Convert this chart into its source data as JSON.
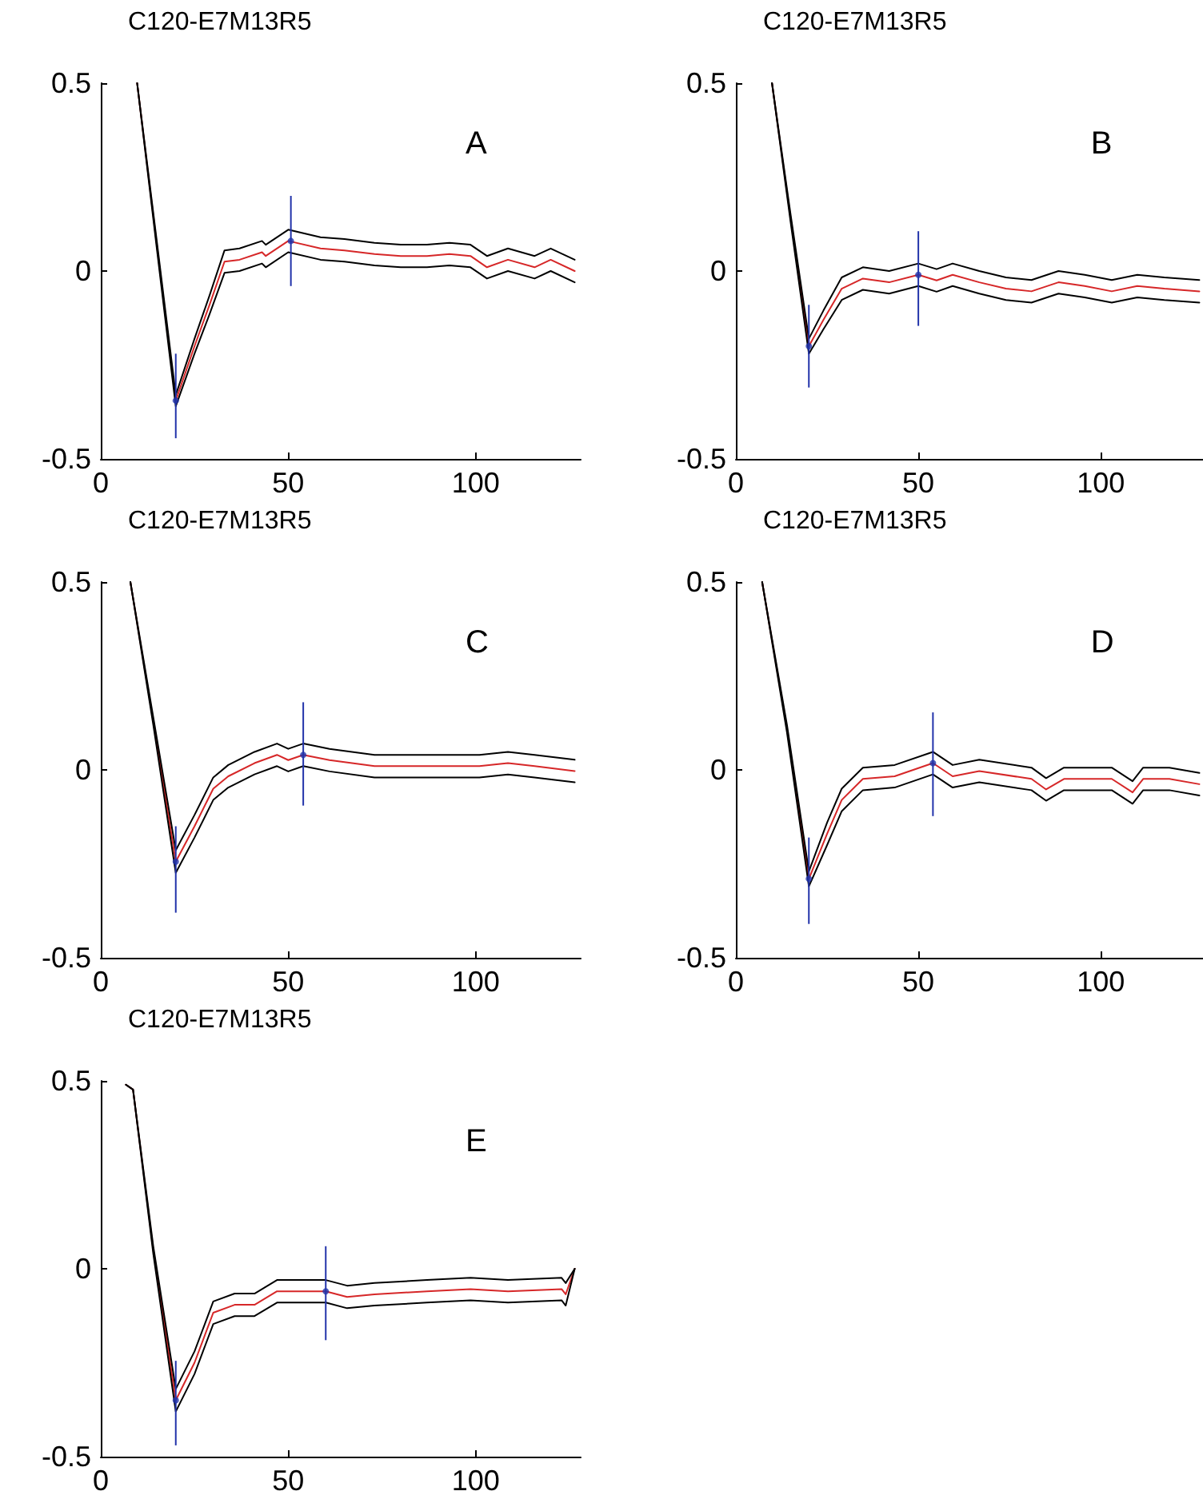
{
  "chart_data": [
    {
      "type": "line",
      "title": "C120-E7M13R5",
      "annotations": [
        "A"
      ],
      "xlim": [
        0,
        128
      ],
      "ylim": [
        -0.5,
        0.5
      ],
      "xticks": [
        0,
        50,
        100
      ],
      "yticks": [
        -0.5,
        0,
        0.5
      ],
      "series": [
        {
          "color": "#d62728",
          "marker": "none",
          "x": [
            9.7,
            15,
            20,
            25,
            29,
            33,
            37,
            43,
            44,
            50,
            58.6,
            65,
            73,
            80,
            87,
            93,
            98.6,
            103,
            108.6,
            115.7,
            120,
            126.4
          ],
          "values": [
            0.5,
            0.065,
            -0.345,
            -0.2,
            -0.09,
            0.025,
            0.03,
            0.05,
            0.04,
            0.08,
            0.06,
            0.055,
            0.045,
            0.04,
            0.04,
            0.045,
            0.04,
            0.01,
            0.03,
            0.01,
            0.03,
            0.0
          ]
        },
        {
          "color": "#000000",
          "marker": "none",
          "x": [
            9.7,
            15,
            20,
            25,
            29,
            33,
            37,
            43,
            44,
            50,
            58.6,
            65,
            73,
            80,
            87,
            93,
            98.6,
            103,
            108.6,
            115.7,
            120,
            126.4
          ],
          "values": [
            0.5,
            0.055,
            -0.36,
            -0.22,
            -0.115,
            -0.005,
            0,
            0.02,
            0.01,
            0.05,
            0.03,
            0.025,
            0.015,
            0.01,
            0.01,
            0.015,
            0.01,
            -0.02,
            0,
            -0.02,
            0,
            -0.03
          ]
        },
        {
          "color": "#000000",
          "marker": "none",
          "x": [
            9.7,
            15,
            20,
            25,
            29,
            33,
            37,
            43,
            44,
            50,
            58.6,
            65,
            73,
            80,
            87,
            93,
            98.6,
            103,
            108.6,
            115.7,
            120,
            126.4
          ],
          "values": [
            0.5,
            0.075,
            -0.33,
            -0.18,
            -0.065,
            0.055,
            0.06,
            0.08,
            0.07,
            0.11,
            0.09,
            0.085,
            0.075,
            0.07,
            0.07,
            0.075,
            0.07,
            0.04,
            0.06,
            0.04,
            0.06,
            0.03
          ]
        },
        {
          "type": "scatter",
          "color": "#2233aa",
          "marker": "circle",
          "x": [
            20,
            50.7
          ],
          "values": [
            -0.345,
            0.08
          ],
          "errors": [
            [
              -0.445,
              -0.22
            ],
            [
              -0.04,
              0.2
            ]
          ]
        }
      ]
    },
    {
      "type": "line",
      "title": "C120-E7M13R5",
      "annotations": [
        "B"
      ],
      "xlim": [
        0,
        128
      ],
      "ylim": [
        -0.5,
        0.5
      ],
      "xticks": [
        0,
        50,
        100
      ],
      "yticks": [
        -0.5,
        0,
        0.5
      ],
      "series": [
        {
          "color": "#d62728",
          "marker": "none",
          "x": [
            9.9,
            15,
            20,
            24,
            29,
            34.8,
            42,
            50,
            55,
            59.4,
            66.7,
            74,
            81,
            88.4,
            95.6,
            103,
            110,
            117.4,
            127
          ],
          "values": [
            0.5,
            0.14,
            -0.2,
            -0.13,
            -0.047,
            -0.02,
            -0.03,
            -0.01,
            -0.025,
            -0.01,
            -0.03,
            -0.047,
            -0.054,
            -0.03,
            -0.04,
            -0.054,
            -0.04,
            -0.047,
            -0.054
          ]
        },
        {
          "color": "#000000",
          "marker": "none",
          "x": [
            9.9,
            15,
            20,
            24,
            29,
            34.8,
            42,
            50,
            55,
            59.4,
            66.7,
            74,
            81,
            88.4,
            95.6,
            103,
            110,
            117.4,
            127
          ],
          "values": [
            0.5,
            0.13,
            -0.22,
            -0.155,
            -0.077,
            -0.05,
            -0.06,
            -0.04,
            -0.055,
            -0.04,
            -0.06,
            -0.077,
            -0.084,
            -0.06,
            -0.07,
            -0.084,
            -0.07,
            -0.077,
            -0.084
          ]
        },
        {
          "color": "#000000",
          "marker": "none",
          "x": [
            9.9,
            15,
            20,
            24,
            29,
            34.8,
            42,
            50,
            55,
            59.4,
            66.7,
            74,
            81,
            88.4,
            95.6,
            103,
            110,
            117.4,
            127
          ],
          "values": [
            0.5,
            0.15,
            -0.18,
            -0.105,
            -0.017,
            0.01,
            0,
            0.02,
            0.005,
            0.02,
            0,
            -0.017,
            -0.024,
            0,
            -0.01,
            -0.024,
            -0.01,
            -0.017,
            -0.024
          ]
        },
        {
          "type": "scatter",
          "color": "#2233aa",
          "marker": "circle",
          "x": [
            20,
            50
          ],
          "values": [
            -0.2,
            -0.01
          ],
          "errors": [
            [
              -0.31,
              -0.09
            ],
            [
              -0.146,
              0.106
            ]
          ]
        }
      ]
    },
    {
      "type": "line",
      "title": "C120-E7M13R5",
      "annotations": [
        "C"
      ],
      "xlim": [
        0,
        128
      ],
      "ylim": [
        -0.5,
        0.5
      ],
      "xticks": [
        0,
        50,
        100
      ],
      "yticks": [
        -0.5,
        0,
        0.5
      ],
      "series": [
        {
          "color": "#d62728",
          "marker": "none",
          "x": [
            7.9,
            14,
            20,
            25,
            30,
            34,
            41,
            47,
            50,
            54,
            61,
            73,
            87,
            101,
            108.6,
            115.7,
            126.4
          ],
          "values": [
            0.5,
            0.13,
            -0.244,
            -0.15,
            -0.05,
            -0.017,
            0.018,
            0.04,
            0.026,
            0.04,
            0.026,
            0.01,
            0.01,
            0.01,
            0.018,
            0.01,
            -0.003
          ]
        },
        {
          "color": "#000000",
          "marker": "none",
          "x": [
            7.9,
            14,
            20,
            25,
            30,
            34,
            41,
            47,
            50,
            54,
            61,
            73,
            87,
            101,
            108.6,
            115.7,
            126.4
          ],
          "values": [
            0.5,
            0.12,
            -0.274,
            -0.18,
            -0.08,
            -0.047,
            -0.012,
            0.01,
            -0.004,
            0.01,
            -0.004,
            -0.02,
            -0.02,
            -0.02,
            -0.012,
            -0.02,
            -0.033
          ]
        },
        {
          "color": "#000000",
          "marker": "none",
          "x": [
            7.9,
            14,
            20,
            25,
            30,
            34,
            41,
            47,
            50,
            54,
            61,
            73,
            87,
            101,
            108.6,
            115.7,
            126.4
          ],
          "values": [
            0.5,
            0.14,
            -0.214,
            -0.12,
            -0.02,
            0.013,
            0.048,
            0.07,
            0.056,
            0.07,
            0.056,
            0.04,
            0.04,
            0.04,
            0.048,
            0.04,
            0.027
          ]
        },
        {
          "type": "scatter",
          "color": "#2233aa",
          "marker": "circle",
          "x": [
            20,
            54
          ],
          "values": [
            -0.244,
            0.04
          ],
          "errors": [
            [
              -0.38,
              -0.15
            ],
            [
              -0.095,
              0.18
            ]
          ]
        }
      ]
    },
    {
      "type": "line",
      "title": "C120-E7M13R5",
      "annotations": [
        "D"
      ],
      "xlim": [
        0,
        128
      ],
      "ylim": [
        -0.5,
        0.5
      ],
      "xticks": [
        0,
        50,
        100
      ],
      "yticks": [
        -0.5,
        0,
        0.5
      ],
      "series": [
        {
          "color": "#d62728",
          "marker": "none",
          "x": [
            7.2,
            14,
            20,
            25,
            29,
            34.8,
            43.5,
            54,
            59.4,
            66.7,
            81,
            85,
            89.9,
            103,
            108.7,
            111.6,
            118.8,
            127
          ],
          "values": [
            0.5,
            0.11,
            -0.29,
            -0.17,
            -0.08,
            -0.024,
            -0.017,
            0.018,
            -0.017,
            -0.003,
            -0.024,
            -0.052,
            -0.024,
            -0.024,
            -0.06,
            -0.024,
            -0.024,
            -0.038
          ]
        },
        {
          "color": "#000000",
          "marker": "none",
          "x": [
            7.2,
            14,
            20,
            25,
            29,
            34.8,
            43.5,
            54,
            59.4,
            66.7,
            81,
            85,
            89.9,
            103,
            108.7,
            111.6,
            118.8,
            127
          ],
          "values": [
            0.5,
            0.1,
            -0.31,
            -0.2,
            -0.11,
            -0.054,
            -0.047,
            -0.012,
            -0.047,
            -0.033,
            -0.054,
            -0.082,
            -0.054,
            -0.054,
            -0.09,
            -0.054,
            -0.054,
            -0.068
          ]
        },
        {
          "color": "#000000",
          "marker": "none",
          "x": [
            7.2,
            14,
            20,
            25,
            29,
            34.8,
            43.5,
            54,
            59.4,
            66.7,
            81,
            85,
            89.9,
            103,
            108.7,
            111.6,
            118.8,
            127
          ],
          "values": [
            0.5,
            0.12,
            -0.27,
            -0.14,
            -0.05,
            0.006,
            0.013,
            0.048,
            0.013,
            0.027,
            0.006,
            -0.022,
            0.006,
            0.006,
            -0.03,
            0.006,
            0.006,
            -0.008
          ]
        },
        {
          "type": "scatter",
          "color": "#2233aa",
          "marker": "circle",
          "x": [
            20,
            54
          ],
          "values": [
            -0.29,
            0.018
          ],
          "errors": [
            [
              -0.41,
              -0.18
            ],
            [
              -0.123,
              0.153
            ]
          ]
        }
      ]
    },
    {
      "type": "line",
      "title": "C120-E7M13R5",
      "annotations": [
        "E"
      ],
      "xlim": [
        0,
        128
      ],
      "ylim": [
        -0.5,
        0.5
      ],
      "xticks": [
        0,
        50,
        100
      ],
      "yticks": [
        -0.5,
        0,
        0.5
      ],
      "series": [
        {
          "color": "#d62728",
          "marker": "none",
          "x": [
            6.7,
            8.6,
            14,
            20,
            25,
            30,
            35.7,
            41,
            47,
            53,
            60,
            65.7,
            73,
            87,
            98.6,
            108.6,
            122.9,
            124,
            126.4
          ],
          "values": [
            0.49,
            0.477,
            0.05,
            -0.35,
            -0.25,
            -0.117,
            -0.096,
            -0.096,
            -0.06,
            -0.06,
            -0.06,
            -0.075,
            -0.068,
            -0.06,
            -0.054,
            -0.06,
            -0.054,
            -0.068,
            0.0
          ]
        },
        {
          "color": "#000000",
          "marker": "none",
          "x": [
            6.7,
            8.6,
            14,
            20,
            25,
            30,
            35.7,
            41,
            47,
            53,
            60,
            65.7,
            73,
            87,
            98.6,
            108.6,
            122.9,
            124,
            126.4
          ],
          "values": [
            0.49,
            0.477,
            0.04,
            -0.38,
            -0.28,
            -0.147,
            -0.126,
            -0.126,
            -0.09,
            -0.09,
            -0.09,
            -0.105,
            -0.098,
            -0.09,
            -0.084,
            -0.09,
            -0.084,
            -0.098,
            0.0
          ]
        },
        {
          "color": "#000000",
          "marker": "none",
          "x": [
            6.7,
            8.6,
            14,
            20,
            25,
            30,
            35.7,
            41,
            47,
            53,
            60,
            65.7,
            73,
            87,
            98.6,
            108.6,
            122.9,
            124,
            126.4
          ],
          "values": [
            0.49,
            0.477,
            0.06,
            -0.32,
            -0.22,
            -0.087,
            -0.066,
            -0.066,
            -0.03,
            -0.03,
            -0.03,
            -0.045,
            -0.038,
            -0.03,
            -0.024,
            -0.03,
            -0.024,
            -0.038,
            0.0
          ]
        },
        {
          "type": "scatter",
          "color": "#2233aa",
          "marker": "circle",
          "x": [
            20,
            60
          ],
          "values": [
            -0.35,
            -0.06
          ],
          "errors": [
            [
              -0.47,
              -0.245
            ],
            [
              -0.19,
              0.06
            ]
          ]
        }
      ]
    }
  ]
}
